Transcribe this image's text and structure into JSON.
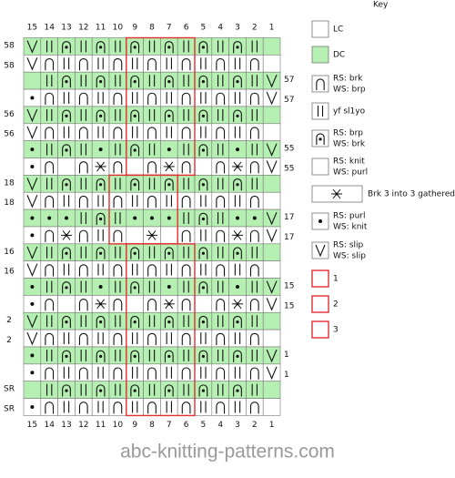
{
  "header": {
    "key": "Key"
  },
  "columns": [
    "15",
    "14",
    "13",
    "12",
    "11",
    "10",
    "9",
    "8",
    "7",
    "6",
    "5",
    "4",
    "3",
    "2",
    "1"
  ],
  "left_labels": [
    "58",
    "58",
    null,
    null,
    "56",
    "56",
    null,
    null,
    "18",
    "18",
    null,
    null,
    "16",
    "16",
    null,
    null,
    "2",
    "2",
    null,
    null,
    "SR",
    "SR"
  ],
  "right_labels": [
    null,
    null,
    "57",
    "57",
    null,
    null,
    "55",
    "55",
    null,
    null,
    "17",
    "17",
    null,
    null,
    "15",
    "15",
    null,
    null,
    "1",
    "1",
    null,
    null
  ],
  "key_items": [
    {
      "lines": [
        "LC"
      ]
    },
    {
      "lines": [
        "DC"
      ]
    },
    {
      "lines": [
        "RS: brk",
        "WS: brp"
      ]
    },
    {
      "lines": [
        "yf sl1yo"
      ]
    },
    {
      "lines": [
        "RS: brp",
        "WS: brk"
      ]
    },
    {
      "lines": [
        "RS: knit",
        "WS: purl"
      ]
    },
    {
      "lines": [
        "Brk 3 into 3 gathered"
      ]
    },
    {
      "lines": [
        "RS: purl",
        "WS: knit"
      ]
    },
    {
      "lines": [
        "RS: slip",
        "WS: slip"
      ]
    },
    {
      "lines": [
        "1"
      ]
    },
    {
      "lines": [
        "2"
      ]
    },
    {
      "lines": [
        "3"
      ]
    }
  ],
  "footer": {
    "watermark": "abc-knitting-patterns.com"
  }
}
